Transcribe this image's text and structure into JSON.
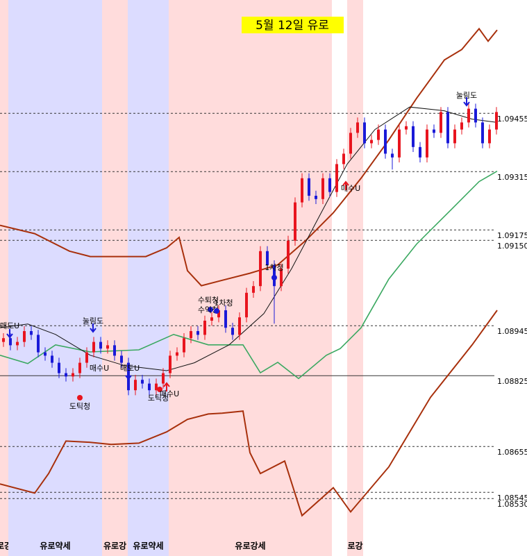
{
  "chart_data": {
    "type": "candlestick",
    "title": "5월 12일 유로",
    "xlim": [
      -0.5,
      71.5
    ],
    "ylim": [
      1.08392,
      1.09727
    ],
    "yticks": [
      1.09455,
      1.09315,
      1.09175,
      {
        "value": 1.0915,
        "label": "1.09150"
      },
      1.08945,
      1.08825,
      1.08655,
      1.08545,
      {
        "value": 1.0853,
        "label": "1.08530"
      }
    ],
    "grid_styles": [
      "dashed",
      "dashed",
      "dashed",
      "dashed",
      "dashed",
      "solid",
      "dashed",
      "dashed",
      "dashed"
    ],
    "up_color": "#e8141e",
    "down_color": "#1a1ad8",
    "candles": [
      [
        1.08906,
        1.08927,
        1.08894,
        1.08915
      ],
      [
        1.08915,
        1.08927,
        1.08886,
        1.08898
      ],
      [
        1.08898,
        1.08918,
        1.08886,
        1.08906
      ],
      [
        1.08906,
        1.08944,
        1.08894,
        1.08932
      ],
      [
        1.08932,
        1.08944,
        1.08911,
        1.08923
      ],
      [
        1.08923,
        1.08935,
        1.08869,
        1.08881
      ],
      [
        1.08881,
        1.08893,
        1.08861,
        1.08873
      ],
      [
        1.08873,
        1.08885,
        1.08844,
        1.08856
      ],
      [
        1.08856,
        1.08868,
        1.08819,
        1.08831
      ],
      [
        1.08831,
        1.08843,
        1.08811,
        1.08823
      ],
      [
        1.08823,
        1.08843,
        1.08811,
        1.08831
      ],
      [
        1.08831,
        1.08868,
        1.08819,
        1.08856
      ],
      [
        1.08856,
        1.08893,
        1.08844,
        1.08881
      ],
      [
        1.08881,
        1.08918,
        1.08869,
        1.08906
      ],
      [
        1.08906,
        1.08918,
        1.08878,
        1.0889
      ],
      [
        1.0889,
        1.0891,
        1.08878,
        1.08898
      ],
      [
        1.08898,
        1.0891,
        1.08861,
        1.08873
      ],
      [
        1.08873,
        1.08885,
        1.08844,
        1.08856
      ],
      [
        1.08856,
        1.08868,
        1.08778,
        1.0879
      ],
      [
        1.0879,
        1.08827,
        1.08778,
        1.08815
      ],
      [
        1.08815,
        1.08827,
        1.08794,
        1.08806
      ],
      [
        1.08806,
        1.08818,
        1.08778,
        1.0879
      ],
      [
        1.0879,
        1.08818,
        1.08778,
        1.08806
      ],
      [
        1.08806,
        1.08843,
        1.08794,
        1.08831
      ],
      [
        1.08831,
        1.08885,
        1.08819,
        1.08873
      ],
      [
        1.08873,
        1.08893,
        1.08861,
        1.08881
      ],
      [
        1.08881,
        1.08927,
        1.08869,
        1.08915
      ],
      [
        1.08915,
        1.08944,
        1.08903,
        1.08932
      ],
      [
        1.08932,
        1.08944,
        1.08911,
        1.08923
      ],
      [
        1.08923,
        1.08969,
        1.08911,
        1.08957
      ],
      [
        1.08957,
        1.08977,
        1.08945,
        1.08965
      ],
      [
        1.08965,
        1.08994,
        1.08953,
        1.08982
      ],
      [
        1.08982,
        1.08994,
        1.08928,
        1.0894
      ],
      [
        1.0894,
        1.08952,
        1.08911,
        1.08923
      ],
      [
        1.08923,
        1.08977,
        1.08911,
        1.08965
      ],
      [
        1.08965,
        1.09036,
        1.08953,
        1.09024
      ],
      [
        1.09024,
        1.09052,
        1.09012,
        1.0904
      ],
      [
        1.0904,
        1.09136,
        1.09028,
        1.09124
      ],
      [
        1.09124,
        1.09136,
        1.09078,
        1.0909
      ],
      [
        1.0909,
        1.09102,
        1.0895,
        1.0904
      ],
      [
        1.0904,
        1.09094,
        1.09028,
        1.09082
      ],
      [
        1.09082,
        1.09161,
        1.0907,
        1.09149
      ],
      [
        1.09149,
        1.09253,
        1.09137,
        1.09241
      ],
      [
        1.09241,
        1.09311,
        1.09229,
        1.09299
      ],
      [
        1.09299,
        1.09311,
        1.09245,
        1.09257
      ],
      [
        1.09257,
        1.09269,
        1.09237,
        1.09249
      ],
      [
        1.09249,
        1.09311,
        1.09237,
        1.09299
      ],
      [
        1.09299,
        1.09311,
        1.09254,
        1.09266
      ],
      [
        1.09266,
        1.09345,
        1.09254,
        1.09333
      ],
      [
        1.09333,
        1.0937,
        1.09321,
        1.09358
      ],
      [
        1.09358,
        1.0942,
        1.09346,
        1.09408
      ],
      [
        1.09408,
        1.09445,
        1.09396,
        1.09433
      ],
      [
        1.09433,
        1.09445,
        1.09371,
        1.09383
      ],
      [
        1.09383,
        1.09403,
        1.09371,
        1.09391
      ],
      [
        1.09391,
        1.09428,
        1.09379,
        1.09416
      ],
      [
        1.09416,
        1.09428,
        1.09346,
        1.09358
      ],
      [
        1.09358,
        1.0937,
        1.0932,
        1.09349
      ],
      [
        1.09349,
        1.09428,
        1.09337,
        1.09416
      ],
      [
        1.09416,
        1.09436,
        1.09404,
        1.09424
      ],
      [
        1.09424,
        1.09436,
        1.09362,
        1.09374
      ],
      [
        1.09374,
        1.09386,
        1.09337,
        1.09349
      ],
      [
        1.09349,
        1.09428,
        1.09337,
        1.09416
      ],
      [
        1.09416,
        1.09428,
        1.09396,
        1.09408
      ],
      [
        1.09408,
        1.0947,
        1.09396,
        1.09458
      ],
      [
        1.09458,
        1.0947,
        1.09371,
        1.09383
      ],
      [
        1.09383,
        1.09428,
        1.09371,
        1.09416
      ],
      [
        1.09416,
        1.09445,
        1.09404,
        1.09433
      ],
      [
        1.09433,
        1.09478,
        1.09421,
        1.09466
      ],
      [
        1.09466,
        1.09478,
        1.09421,
        1.09433
      ],
      [
        1.09433,
        1.09445,
        1.09371,
        1.09383
      ],
      [
        1.09383,
        1.09428,
        1.09371,
        1.09416
      ],
      [
        1.09416,
        1.0947,
        1.09404,
        1.09458
      ]
    ],
    "lines": [
      {
        "color": "#a8300c",
        "width": 2,
        "x": [
          -0.5,
          4.5,
          9.5,
          12.5,
          20.5,
          23.5,
          25.3,
          26.5,
          28.5,
          31.5,
          35.5,
          39.5,
          43.5,
          47.5,
          51.5,
          55.5,
          59.5,
          63.5,
          66,
          68.5,
          69.8,
          71.1
        ],
        "values": [
          1.09186,
          1.09166,
          1.09124,
          1.09111,
          1.09111,
          1.09132,
          1.09157,
          1.09077,
          1.09041,
          1.09054,
          1.09071,
          1.09091,
          1.09149,
          1.09216,
          1.09299,
          1.09391,
          1.09491,
          1.09583,
          1.09608,
          1.09658,
          1.09628,
          1.09655
        ]
      },
      {
        "color": "#a8300c",
        "width": 2,
        "x": [
          -0.5,
          4.5,
          6.5,
          9,
          12.5,
          15.5,
          19.5,
          23.5,
          26.5,
          29.5,
          31.5,
          34.5,
          35.5,
          37,
          40.5,
          43,
          47.5,
          50,
          55.5,
          61.5,
          67.5,
          71.1
        ],
        "values": [
          1.08565,
          1.08543,
          1.0859,
          1.08668,
          1.08665,
          1.0866,
          1.08663,
          1.0869,
          1.0872,
          1.08733,
          1.08735,
          1.0874,
          1.0864,
          1.0859,
          1.0862,
          1.08489,
          1.08556,
          1.08498,
          1.08606,
          1.08773,
          1.08899,
          1.08982
        ]
      },
      {
        "color": "#3aa860",
        "width": 1.6,
        "x": [
          -0.5,
          3.5,
          7.5,
          12.5,
          19.5,
          24.5,
          29.5,
          34.5,
          37,
          39.5,
          42.5,
          46.5,
          48.5,
          51.5,
          55.5,
          59.5,
          64.5,
          68.5,
          71.1
        ],
        "values": [
          1.08874,
          1.08854,
          1.08899,
          1.08882,
          1.08887,
          1.08924,
          1.08899,
          1.08899,
          1.08832,
          1.08857,
          1.08818,
          1.08874,
          1.0889,
          1.0894,
          1.09057,
          1.09141,
          1.09224,
          1.09291,
          1.09316
        ]
      },
      {
        "color": "#111111",
        "width": 1,
        "x": [
          -0.5,
          3.5,
          7.5,
          12.5,
          17.5,
          23.5,
          27.5,
          32.5,
          37.5,
          41.5,
          45.5,
          49.5,
          53.5,
          58.5,
          63.5,
          67.5,
          71.1
        ],
        "values": [
          1.0894,
          1.08949,
          1.08924,
          1.08874,
          1.08849,
          1.08837,
          1.08856,
          1.08899,
          1.08974,
          1.09082,
          1.09208,
          1.09333,
          1.09416,
          1.0947,
          1.09461,
          1.09441,
          1.09433
        ]
      }
    ],
    "regimes": [
      {
        "start": -0.5,
        "end": 0.7,
        "color": "#ffdcdc",
        "label": "로강"
      },
      {
        "start": 0.7,
        "end": 14.2,
        "color": "#dcdcff",
        "label": "유로약세"
      },
      {
        "start": 14.2,
        "end": 17.9,
        "color": "#ffdcdc",
        "label": "유로강"
      },
      {
        "start": 17.9,
        "end": 23.8,
        "color": "#dcdcff",
        "label": "유로약세"
      },
      {
        "start": 23.8,
        "end": 47.3,
        "color": "#ffdcdc",
        "label": "유로강세"
      },
      {
        "start": 49.5,
        "end": 51.8,
        "color": "#ffdcdc",
        "label": "로강"
      }
    ],
    "annotations": [
      "매도U",
      "눌림도",
      "도틱청",
      "매수U",
      "매도U",
      "도틱청",
      "매수U",
      "수퇴청",
      "수익청",
      "1차청",
      "1차청",
      "매수U",
      "눌림도"
    ]
  }
}
